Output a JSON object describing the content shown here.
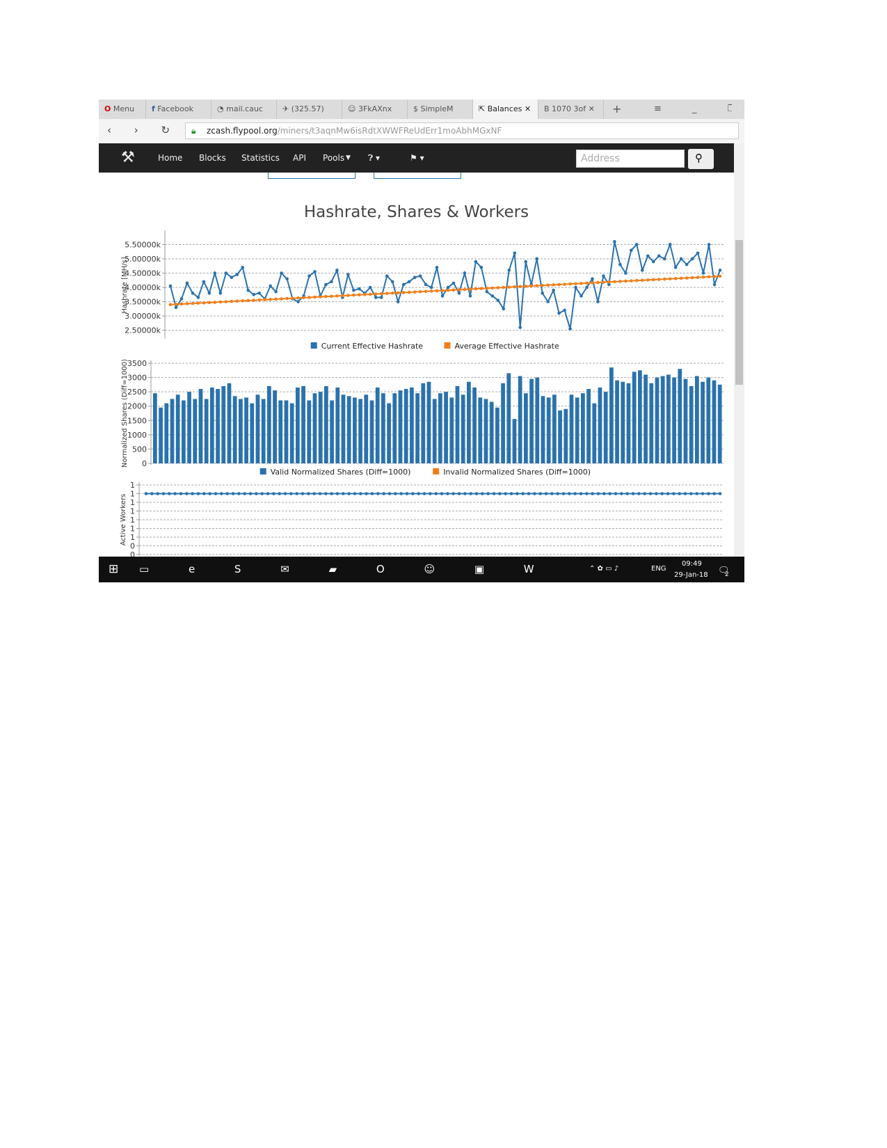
{
  "browser": {
    "tabs": [
      "Menu",
      "Facebook",
      "mail.cauc",
      "(325.57)",
      "3FkAXnx",
      "SimpleM",
      "Balances",
      "1070 3of"
    ],
    "url_host": "zcash.flypool.org",
    "url_path": "/miners/t3aqnMw6isRdtXWWFReUdErr1moAbhMGxNF"
  },
  "site": {
    "nav": [
      "Home",
      "Blocks",
      "Statistics",
      "API",
      "Pools"
    ],
    "search_placeholder": "Address"
  },
  "section_title": "Hashrate, Shares & Workers",
  "chart_data": [
    {
      "type": "line",
      "y_label": "Hashrate [MH/s]",
      "ylim": [
        2250,
        5900
      ],
      "yticks": [
        {
          "value": 2500,
          "label": "2.50000k"
        },
        {
          "value": 3000,
          "label": "3.00000k"
        },
        {
          "value": 3500,
          "label": "3.50000k"
        },
        {
          "value": 4000,
          "label": "4.00000k"
        },
        {
          "value": 4500,
          "label": "4.50000k"
        },
        {
          "value": 5000,
          "label": "5.00000k"
        },
        {
          "value": 5500,
          "label": "5.50000k"
        }
      ],
      "grid": true,
      "series": [
        {
          "name": "Current Effective Hashrate",
          "color": "#2a72ad",
          "values": [
            4050,
            3300,
            3600,
            4150,
            3800,
            3650,
            4200,
            3800,
            4500,
            3800,
            4500,
            4350,
            4450,
            4700,
            3900,
            3750,
            3800,
            3600,
            4050,
            3850,
            4500,
            4300,
            3600,
            3500,
            3700,
            4400,
            4550,
            3700,
            4100,
            4200,
            4600,
            3650,
            4450,
            3900,
            3950,
            3800,
            4000,
            3650,
            3650,
            4400,
            4200,
            3500,
            4100,
            4200,
            4350,
            4400,
            4100,
            4000,
            4700,
            3700,
            4000,
            4150,
            3800,
            4500,
            3700,
            4900,
            4700,
            3850,
            3700,
            3550,
            3250,
            4600,
            5200,
            2600,
            4900,
            4100,
            5000,
            3800,
            3500,
            3900,
            3100,
            3200,
            2550,
            4000,
            3700,
            4000,
            4300,
            3500,
            4400,
            4100,
            5600,
            4800,
            4500,
            5300,
            5500,
            4600,
            5100,
            4900,
            5100,
            5000,
            5500,
            4700,
            5000,
            4800,
            5000,
            5200,
            4500,
            5500,
            4100,
            4600
          ]
        },
        {
          "name": "Average Effective Hashrate",
          "color": "#f07f1b",
          "values": [
            3400,
            3410,
            3420,
            3430,
            3440,
            3450,
            3460,
            3470,
            3480,
            3490,
            3500,
            3510,
            3520,
            3530,
            3540,
            3550,
            3560,
            3570,
            3580,
            3590,
            3600,
            3610,
            3620,
            3630,
            3640,
            3650,
            3660,
            3670,
            3680,
            3690,
            3700,
            3710,
            3720,
            3730,
            3740,
            3750,
            3760,
            3770,
            3780,
            3790,
            3800,
            3810,
            3820,
            3830,
            3840,
            3850,
            3860,
            3870,
            3880,
            3890,
            3900,
            3910,
            3920,
            3930,
            3940,
            3950,
            3960,
            3970,
            3980,
            3990,
            4000,
            4010,
            4020,
            4030,
            4040,
            4050,
            4060,
            4070,
            4080,
            4090,
            4100,
            4110,
            4120,
            4130,
            4140,
            4150,
            4160,
            4170,
            4180,
            4190,
            4200,
            4210,
            4220,
            4230,
            4240,
            4250,
            4260,
            4270,
            4280,
            4290,
            4300,
            4310,
            4320,
            4330,
            4340,
            4350,
            4360,
            4370,
            4380,
            4390
          ]
        }
      ]
    },
    {
      "type": "bar",
      "y_label": "Normalized Shares (Diff=1000)",
      "ylim": [
        0,
        3500
      ],
      "yticks": [
        0,
        500,
        1000,
        1500,
        2000,
        2500,
        3000,
        3500
      ],
      "grid": true,
      "series": [
        {
          "name": "Valid Normalized Shares (Diff=1000)",
          "color": "#2a72ad",
          "values": [
            2450,
            1950,
            2100,
            2250,
            2400,
            2200,
            2500,
            2250,
            2600,
            2250,
            2650,
            2600,
            2700,
            2800,
            2350,
            2250,
            2300,
            2100,
            2400,
            2250,
            2700,
            2550,
            2200,
            2200,
            2100,
            2650,
            2700,
            2200,
            2450,
            2500,
            2700,
            2200,
            2650,
            2400,
            2350,
            2300,
            2250,
            2400,
            2200,
            2650,
            2450,
            2100,
            2450,
            2550,
            2600,
            2650,
            2450,
            2800,
            2850,
            2250,
            2450,
            2500,
            2300,
            2700,
            2400,
            2850,
            2650,
            2300,
            2250,
            2150,
            1950,
            2800,
            3150,
            1550,
            3050,
            2450,
            2950,
            3000,
            2350,
            2300,
            2400,
            1850,
            1900,
            2400,
            2300,
            2450,
            2600,
            2100,
            2650,
            2500,
            3350,
            2900,
            2850,
            2800,
            3200,
            3250,
            3100,
            2800,
            3000,
            3050,
            3100,
            3000,
            3300,
            2950,
            2700,
            3050,
            2850,
            3000,
            2900,
            2750
          ]
        },
        {
          "name": "Invalid Normalized Shares (Diff=1000)",
          "color": "#f07f1b",
          "values": [
            0,
            0,
            0,
            0,
            0,
            0,
            0,
            0,
            0,
            0,
            0,
            0,
            0,
            0,
            0,
            0,
            0,
            0,
            0,
            0,
            0,
            0,
            0,
            0,
            0,
            0,
            0,
            0,
            0,
            0,
            0,
            0,
            0,
            0,
            0,
            0,
            0,
            0,
            0,
            0,
            0,
            0,
            0,
            0,
            0,
            0,
            0,
            0,
            0,
            0,
            0,
            0,
            0,
            0,
            0,
            0,
            0,
            0,
            0,
            0,
            0,
            0,
            0,
            0,
            0,
            0,
            0,
            0,
            0,
            0,
            0,
            0,
            0,
            0,
            0,
            0,
            0,
            0,
            0,
            0,
            0,
            0,
            0,
            0,
            0,
            0,
            0,
            0,
            0,
            0,
            0,
            0,
            0,
            0,
            0,
            0,
            0,
            0,
            0,
            0
          ]
        }
      ]
    },
    {
      "type": "line",
      "y_label": "Active Workers",
      "ylim": [
        0.3,
        1.1
      ],
      "yticks": [
        {
          "value": 0.3,
          "label": "0"
        },
        {
          "value": 0.4,
          "label": "0"
        },
        {
          "value": 0.5,
          "label": "1"
        },
        {
          "value": 0.6,
          "label": "1"
        },
        {
          "value": 0.7,
          "label": "1"
        },
        {
          "value": 0.8,
          "label": "1"
        },
        {
          "value": 0.9,
          "label": "1"
        },
        {
          "value": 1.0,
          "label": "1"
        },
        {
          "value": 1.1,
          "label": "1"
        }
      ],
      "grid": true,
      "series": [
        {
          "color": "#2a72ad",
          "values": [
            1,
            1,
            1,
            1,
            1,
            1,
            1,
            1,
            1,
            1,
            1,
            1,
            1,
            1,
            1,
            1,
            1,
            1,
            1,
            1,
            1,
            1,
            1,
            1,
            1,
            1,
            1,
            1,
            1,
            1,
            1,
            1,
            1,
            1,
            1,
            1,
            1,
            1,
            1,
            1,
            1,
            1,
            1,
            1,
            1,
            1,
            1,
            1,
            1,
            1,
            1,
            1,
            1,
            1,
            1,
            1,
            1,
            1,
            1,
            1,
            1,
            1,
            1,
            1,
            1,
            1,
            1,
            1,
            1,
            1,
            1,
            1,
            1,
            1,
            1,
            1,
            1,
            1,
            1,
            1,
            1,
            1,
            1,
            1,
            1,
            1,
            1,
            1,
            1,
            1,
            1,
            1,
            1,
            1,
            1,
            1,
            1,
            1,
            1,
            1
          ]
        }
      ]
    }
  ],
  "taskbar": {
    "language": "ENG",
    "time": "09:49",
    "date": "29-Jan-18",
    "notifications": 2
  }
}
